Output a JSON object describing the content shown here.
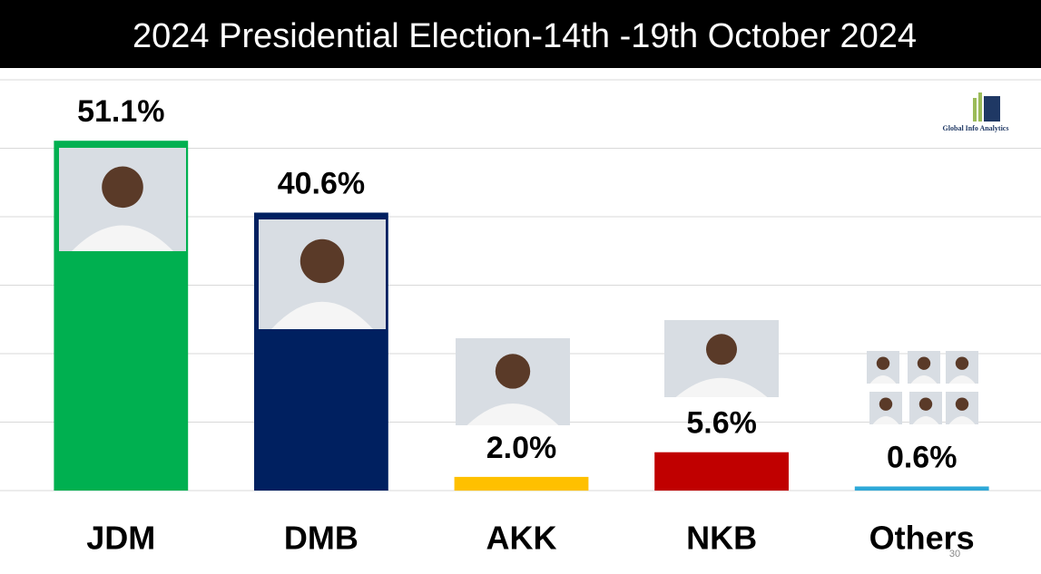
{
  "chart_data": {
    "type": "bar",
    "title": "2024 Presidential Election-14th -19th October 2024",
    "categories": [
      "JDM",
      "DMB",
      "AKK",
      "NKB",
      "Others"
    ],
    "values": [
      51.1,
      40.6,
      2.0,
      5.6,
      0.6
    ],
    "value_labels": [
      "51.1%",
      "40.6%",
      "2.0%",
      "5.6%",
      "0.6%"
    ],
    "colors": [
      "#00b050",
      "#002060",
      "#ffc000",
      "#c00000",
      "#2ea8d8"
    ],
    "ylim": [
      0,
      60
    ],
    "yticks": [
      0,
      10,
      20,
      30,
      40,
      50,
      60
    ],
    "grid": true,
    "logo": "Global Info Analytics",
    "page_number": "30"
  }
}
